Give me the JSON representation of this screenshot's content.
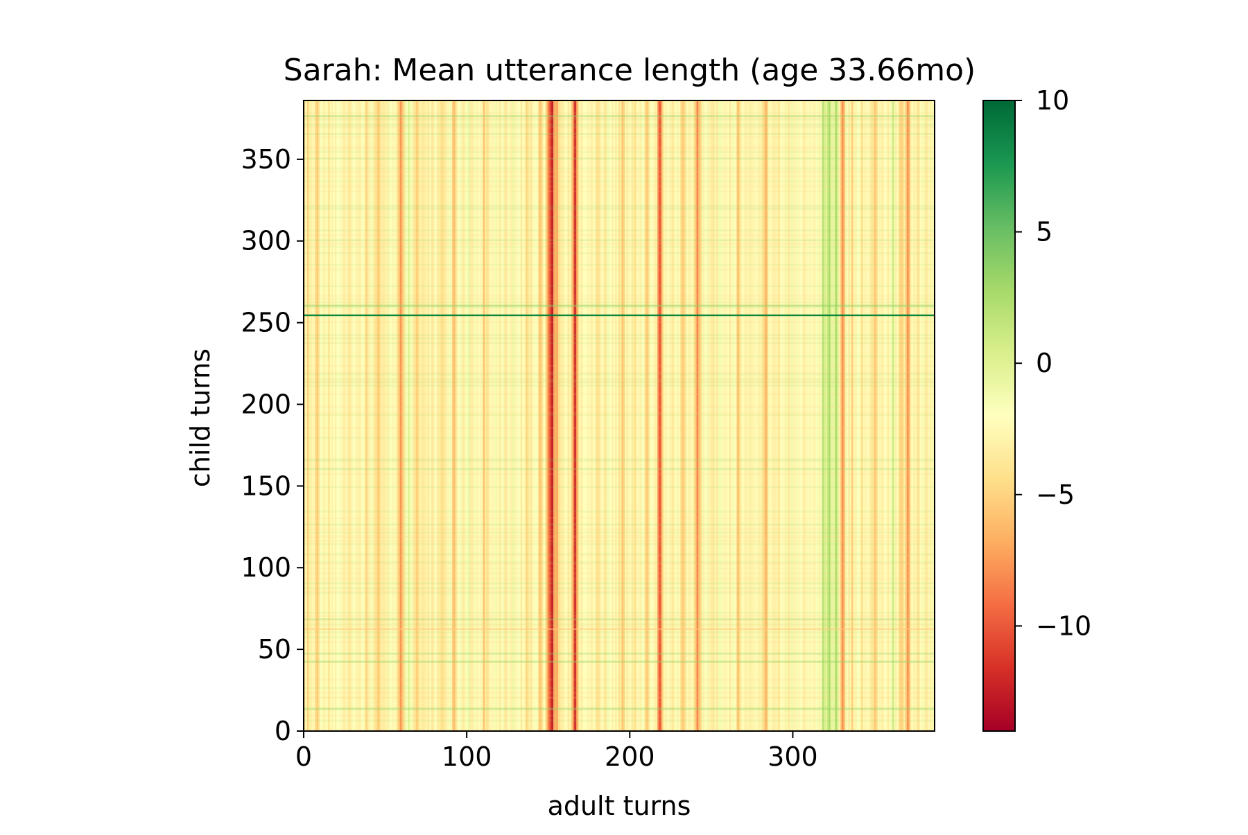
{
  "chart_data": {
    "type": "heatmap",
    "title": "Sarah: Mean utterance length (age 33.66mo)",
    "xlabel": "adult turns",
    "ylabel": "child turns",
    "xlim": [
      0,
      387
    ],
    "ylim": [
      0,
      386
    ],
    "x_ticks": [
      0,
      100,
      200,
      300
    ],
    "y_ticks": [
      0,
      50,
      100,
      150,
      200,
      250,
      300,
      350
    ],
    "colorbar": {
      "colormap": "RdYlGn",
      "vmin": -14,
      "vmax": 10,
      "ticks": [
        10,
        5,
        0,
        -5,
        -10
      ],
      "tick_labels": [
        "10",
        "5",
        "0",
        "−5",
        "−10"
      ]
    },
    "base_value": -2.5,
    "column_effects": [
      {
        "x": 2,
        "value": -4
      },
      {
        "x": 8,
        "value": -5
      },
      {
        "x": 15,
        "value": -4
      },
      {
        "x": 22,
        "value": -2
      },
      {
        "x": 30,
        "value": -3
      },
      {
        "x": 38,
        "value": -5
      },
      {
        "x": 45,
        "value": -6
      },
      {
        "x": 52,
        "value": -2
      },
      {
        "x": 59,
        "value": -7
      },
      {
        "x": 64,
        "value": 1
      },
      {
        "x": 69,
        "value": -5
      },
      {
        "x": 76,
        "value": -3
      },
      {
        "x": 85,
        "value": -4
      },
      {
        "x": 92,
        "value": -6
      },
      {
        "x": 100,
        "value": -1
      },
      {
        "x": 110,
        "value": -5
      },
      {
        "x": 120,
        "value": -3
      },
      {
        "x": 128,
        "value": -2
      },
      {
        "x": 137,
        "value": -5
      },
      {
        "x": 145,
        "value": -6
      },
      {
        "x": 150,
        "value": -10
      },
      {
        "x": 152,
        "value": -12
      },
      {
        "x": 155,
        "value": -8
      },
      {
        "x": 160,
        "value": -3
      },
      {
        "x": 166,
        "value": -13
      },
      {
        "x": 173,
        "value": -3
      },
      {
        "x": 180,
        "value": -5
      },
      {
        "x": 188,
        "value": -2
      },
      {
        "x": 195,
        "value": -6
      },
      {
        "x": 203,
        "value": -4
      },
      {
        "x": 210,
        "value": -5
      },
      {
        "x": 218,
        "value": -11
      },
      {
        "x": 225,
        "value": -3
      },
      {
        "x": 232,
        "value": -6
      },
      {
        "x": 241,
        "value": -9
      },
      {
        "x": 250,
        "value": -4
      },
      {
        "x": 258,
        "value": -2
      },
      {
        "x": 266,
        "value": -5
      },
      {
        "x": 274,
        "value": -3
      },
      {
        "x": 283,
        "value": -6
      },
      {
        "x": 291,
        "value": -4
      },
      {
        "x": 300,
        "value": -2
      },
      {
        "x": 308,
        "value": -3
      },
      {
        "x": 318,
        "value": 1
      },
      {
        "x": 322,
        "value": 2
      },
      {
        "x": 326,
        "value": 2
      },
      {
        "x": 330,
        "value": -9
      },
      {
        "x": 336,
        "value": -5
      },
      {
        "x": 342,
        "value": -4
      },
      {
        "x": 350,
        "value": -6
      },
      {
        "x": 356,
        "value": -3
      },
      {
        "x": 361,
        "value": 0
      },
      {
        "x": 366,
        "value": -5
      },
      {
        "x": 370,
        "value": -9
      },
      {
        "x": 376,
        "value": -4
      },
      {
        "x": 383,
        "value": -2
      }
    ],
    "row_effects": [
      {
        "y": 13,
        "value": 2
      },
      {
        "y": 20,
        "value": -1
      },
      {
        "y": 42,
        "value": 2
      },
      {
        "y": 47,
        "value": 1
      },
      {
        "y": 62,
        "value": -2
      },
      {
        "y": 68,
        "value": 1
      },
      {
        "y": 90,
        "value": 1
      },
      {
        "y": 126,
        "value": 1
      },
      {
        "y": 160,
        "value": 1
      },
      {
        "y": 205,
        "value": 1
      },
      {
        "y": 254,
        "value": 9
      },
      {
        "y": 260,
        "value": 3
      },
      {
        "y": 300,
        "value": 1
      },
      {
        "y": 350,
        "value": 1
      },
      {
        "y": 365,
        "value": 1
      },
      {
        "y": 376,
        "value": 2
      }
    ]
  }
}
